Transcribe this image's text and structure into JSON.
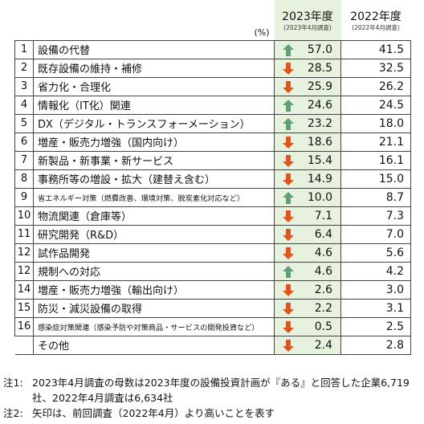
{
  "header": {
    "unit": "(%)",
    "col_2023": "2023年度",
    "col_2023_sub": "(2023年4月調査)",
    "col_2022": "2022年度",
    "col_2022_sub": "(2022年4月調査)"
  },
  "colors": {
    "up": "#5b9f7b",
    "down": "#e2541d",
    "highlight": "#e6f2de"
  },
  "chart_data": {
    "type": "table",
    "columns": [
      "2023年度",
      "2022年度"
    ],
    "rows": [
      {
        "rank": "1",
        "label": "設備の代替",
        "v2023": "57.0",
        "v2022": "41.5",
        "dir": "up",
        "small": false
      },
      {
        "rank": "2",
        "label": "既存設備の維持・補修",
        "v2023": "28.5",
        "v2022": "32.5",
        "dir": "down",
        "small": false
      },
      {
        "rank": "3",
        "label": "省力化・合理化",
        "v2023": "25.9",
        "v2022": "26.2",
        "dir": "down",
        "small": false
      },
      {
        "rank": "4",
        "label": "情報化（IT化）関連",
        "v2023": "24.6",
        "v2022": "24.5",
        "dir": "up",
        "small": false
      },
      {
        "rank": "5",
        "label": "DX（デジタル・トランスフォーメーション）",
        "v2023": "23.2",
        "v2022": "18.0",
        "dir": "up",
        "small": false
      },
      {
        "rank": "6",
        "label": "増産・販売力増強（国内向け）",
        "v2023": "18.6",
        "v2022": "21.1",
        "dir": "down",
        "small": false
      },
      {
        "rank": "7",
        "label": "新製品・新事業・新サービス",
        "v2023": "15.4",
        "v2022": "16.1",
        "dir": "down",
        "small": false
      },
      {
        "rank": "8",
        "label": "事務所等の増設・拡大（建替え含む）",
        "v2023": "14.9",
        "v2022": "15.0",
        "dir": "down",
        "small": false
      },
      {
        "rank": "9",
        "label": "省エネルギー対策（燃費改善、環境対策、脱炭素化対応など）",
        "v2023": "10.0",
        "v2022": "8.7",
        "dir": "up",
        "small": true
      },
      {
        "rank": "10",
        "label": "物流関連（倉庫等）",
        "v2023": "7.1",
        "v2022": "7.3",
        "dir": "down",
        "small": false
      },
      {
        "rank": "11",
        "label": "研究開発（R&D）",
        "v2023": "6.4",
        "v2022": "7.0",
        "dir": "down",
        "small": false
      },
      {
        "rank": "12",
        "label": "試作品開発",
        "v2023": "4.6",
        "v2022": "5.6",
        "dir": "down",
        "small": false
      },
      {
        "rank": "12",
        "label": "規制への対応",
        "v2023": "4.6",
        "v2022": "4.2",
        "dir": "up",
        "small": false
      },
      {
        "rank": "14",
        "label": "増産・販売力増強（輸出向け）",
        "v2023": "2.6",
        "v2022": "3.0",
        "dir": "down",
        "small": false
      },
      {
        "rank": "15",
        "label": "防災・減災設備の取得",
        "v2023": "2.2",
        "v2022": "3.1",
        "dir": "down",
        "small": false
      },
      {
        "rank": "16",
        "label": "感染症対策関連（感染予防や対策商品・サービスの開発投資など）",
        "v2023": "0.5",
        "v2022": "2.5",
        "dir": "down",
        "small": true
      },
      {
        "rank": "",
        "label": "その他",
        "v2023": "2.4",
        "v2022": "2.8",
        "dir": "down",
        "small": false
      }
    ]
  },
  "notes": [
    {
      "tag": "注1:",
      "text": "2023年4月調査の母数は2023年度の設備投資計画が『ある』と回答した企業6,719社、2022年4月調査は6,634社"
    },
    {
      "tag": "注2:",
      "text": "矢印は、前回調査（2022年4月）より高いことを表す"
    }
  ]
}
